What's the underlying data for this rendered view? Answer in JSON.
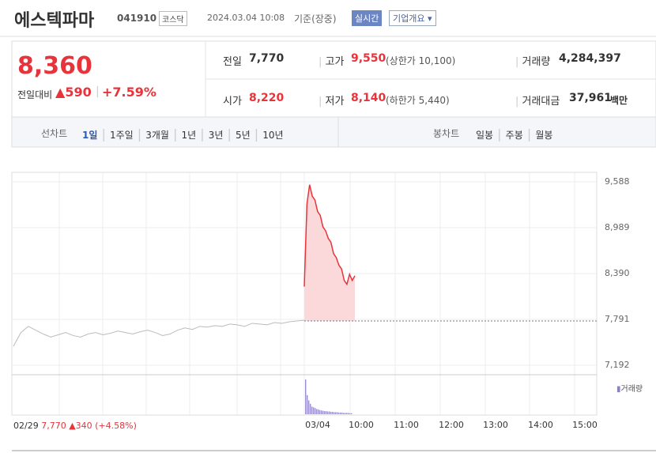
{
  "header": {
    "name": "에스텍파마",
    "code": "041910",
    "market": "코스닥",
    "datetime": "2024.03.04 10:08",
    "basis": "기준(장중)",
    "realtime": "실시간",
    "company_info": "기업개요"
  },
  "quote": {
    "price": "8,360",
    "change_label": "전일대비",
    "change": "590",
    "change_pct": "+7.59%"
  },
  "stats": [
    {
      "label": "전일",
      "value": "7,770"
    },
    {
      "label": "고가",
      "value": "9,550",
      "note": "(상한가 10,100)"
    },
    {
      "label": "거래량",
      "value": "4,284,397"
    },
    {
      "label": "시가",
      "value": "8,220"
    },
    {
      "label": "저가",
      "value": "8,140",
      "note": "(하한가 5,440)"
    },
    {
      "label": "거래대금",
      "value": "37,961",
      "unit": "백만"
    }
  ],
  "tabs": {
    "line_label": "선차트",
    "line_periods": [
      "1일",
      "1주일",
      "3개월",
      "1년",
      "3년",
      "5년",
      "10년"
    ],
    "candle_label": "봉차트",
    "candle_periods": [
      "일봉",
      "주봉",
      "월봉"
    ]
  },
  "chart_data": {
    "type": "line",
    "ylim": [
      7089,
      9712
    ],
    "yticks": [
      {
        "value": 7192,
        "label": "7,192"
      },
      {
        "value": 7791,
        "label": "7,791"
      },
      {
        "value": 8390,
        "label": "8,390"
      },
      {
        "value": 8989,
        "label": "8,989"
      },
      {
        "value": 9588,
        "label": "9,588"
      }
    ],
    "xticks": [
      "03/04",
      "10:00",
      "11:00",
      "12:00",
      "13:00",
      "14:00",
      "15:00"
    ],
    "series": [
      {
        "color": "#bbbbbb",
        "values": [
          7440,
          7620,
          7700,
          7650,
          7600,
          7560,
          7590,
          7620,
          7580,
          7560,
          7600,
          7620,
          7590,
          7610,
          7640,
          7620,
          7600,
          7630,
          7650,
          7620,
          7580,
          7600,
          7650,
          7680,
          7660,
          7700,
          7690,
          7710,
          7700,
          7730,
          7720,
          7700,
          7740,
          7730,
          7720,
          7750,
          7740,
          7760,
          7770,
          7780
        ]
      },
      {
        "color": "#e8333a",
        "values": [
          8220,
          9300,
          9550,
          9400,
          9350,
          9200,
          9150,
          9000,
          8950,
          8850,
          8800,
          8650,
          8600,
          8500,
          8450,
          8300,
          8250,
          8380,
          8300,
          8360
        ]
      }
    ],
    "reference": {
      "date": "02/29",
      "close": {
        "value": 7770,
        "label": "7,770"
      },
      "change": "340",
      "change_pct": "(+4.58%)"
    },
    "volume": {
      "label": "거래량",
      "color": "#9b8fd0",
      "values": [
        100,
        55,
        40,
        30,
        22,
        20,
        18,
        15,
        14,
        12,
        11,
        10,
        9,
        9,
        8,
        8,
        7,
        7,
        6,
        6,
        6,
        5,
        5,
        5,
        4,
        4,
        4,
        4,
        3,
        3
      ]
    }
  }
}
